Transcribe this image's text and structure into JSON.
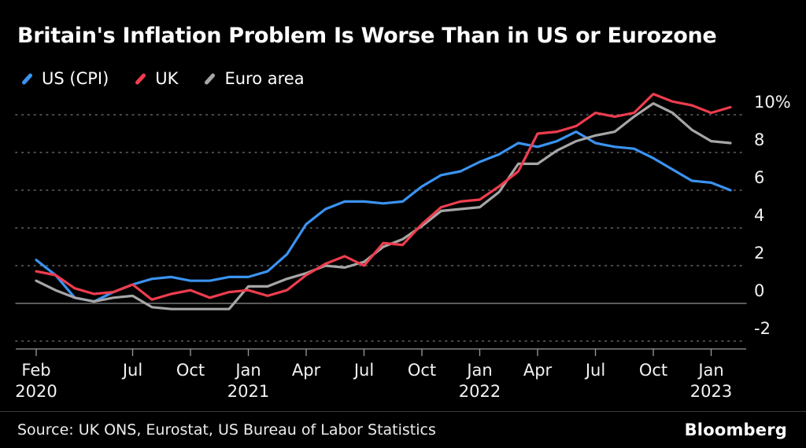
{
  "header": {
    "title": "Britain's Inflation Problem Is Worse Than in US or Eurozone"
  },
  "footer": {
    "source": "Source: UK ONS, Eurostat, US Bureau of Labor Statistics",
    "brand": "Bloomberg"
  },
  "chart_data": {
    "type": "line",
    "title": "Britain's Inflation Problem Is Worse Than in US or Eurozone",
    "unit": "%",
    "grid": "dotted-horizontal",
    "legend_position": "top-left",
    "ylim": [
      -2.6,
      11.5
    ],
    "grid_values": [
      10,
      8,
      6,
      4,
      2,
      0,
      -2
    ],
    "ytick_labels": [
      "10%",
      "8",
      "6",
      "4",
      "2",
      "0",
      "-2"
    ],
    "x": [
      "Feb 2020",
      "Mar 2020",
      "Apr 2020",
      "May 2020",
      "Jun 2020",
      "Jul 2020",
      "Aug 2020",
      "Sep 2020",
      "Oct 2020",
      "Nov 2020",
      "Dec 2020",
      "Jan 2021",
      "Feb 2021",
      "Mar 2021",
      "Apr 2021",
      "May 2021",
      "Jun 2021",
      "Jul 2021",
      "Aug 2021",
      "Sep 2021",
      "Oct 2021",
      "Nov 2021",
      "Dec 2021",
      "Jan 2022",
      "Feb 2022",
      "Mar 2022",
      "Apr 2022",
      "May 2022",
      "Jun 2022",
      "Jul 2022",
      "Aug 2022",
      "Sep 2022",
      "Oct 2022",
      "Nov 2022",
      "Dec 2022",
      "Jan 2023",
      "Feb 2023"
    ],
    "xticks": [
      {
        "index": 0,
        "label": "Feb",
        "year": "2020"
      },
      {
        "index": 5,
        "label": "Jul"
      },
      {
        "index": 8,
        "label": "Oct"
      },
      {
        "index": 11,
        "label": "Jan",
        "year": "2021"
      },
      {
        "index": 14,
        "label": "Apr"
      },
      {
        "index": 17,
        "label": "Jul"
      },
      {
        "index": 20,
        "label": "Oct"
      },
      {
        "index": 23,
        "label": "Jan",
        "year": "2022"
      },
      {
        "index": 26,
        "label": "Apr"
      },
      {
        "index": 29,
        "label": "Jul"
      },
      {
        "index": 32,
        "label": "Oct"
      },
      {
        "index": 35,
        "label": "Jan",
        "year": "2023"
      }
    ],
    "series": [
      {
        "name": "US (CPI)",
        "color": "#3b93f0",
        "values": [
          2.3,
          1.5,
          0.3,
          0.1,
          0.6,
          1.0,
          1.3,
          1.4,
          1.2,
          1.2,
          1.4,
          1.4,
          1.7,
          2.6,
          4.2,
          5.0,
          5.4,
          5.4,
          5.3,
          5.4,
          6.2,
          6.8,
          7.0,
          7.5,
          7.9,
          8.5,
          8.3,
          8.6,
          9.1,
          8.5,
          8.3,
          8.2,
          7.7,
          7.1,
          6.5,
          6.4,
          6.0
        ]
      },
      {
        "name": "UK",
        "color": "#ee3d4e",
        "values": [
          1.7,
          1.5,
          0.8,
          0.5,
          0.6,
          1.0,
          0.2,
          0.5,
          0.7,
          0.3,
          0.6,
          0.7,
          0.4,
          0.7,
          1.5,
          2.1,
          2.5,
          2.0,
          3.2,
          3.1,
          4.2,
          5.1,
          5.4,
          5.5,
          6.2,
          7.0,
          9.0,
          9.1,
          9.4,
          10.1,
          9.9,
          10.1,
          11.1,
          10.7,
          10.5,
          10.1,
          10.4
        ]
      },
      {
        "name": "Euro area",
        "color": "#a6a6a6",
        "values": [
          1.2,
          0.7,
          0.3,
          0.1,
          0.3,
          0.4,
          -0.2,
          -0.3,
          -0.3,
          -0.3,
          -0.3,
          0.9,
          0.9,
          1.3,
          1.6,
          2.0,
          1.9,
          2.2,
          3.0,
          3.4,
          4.1,
          4.9,
          5.0,
          5.1,
          5.9,
          7.4,
          7.4,
          8.1,
          8.6,
          8.9,
          9.1,
          9.9,
          10.6,
          10.1,
          9.2,
          8.6,
          8.5
        ]
      }
    ]
  }
}
